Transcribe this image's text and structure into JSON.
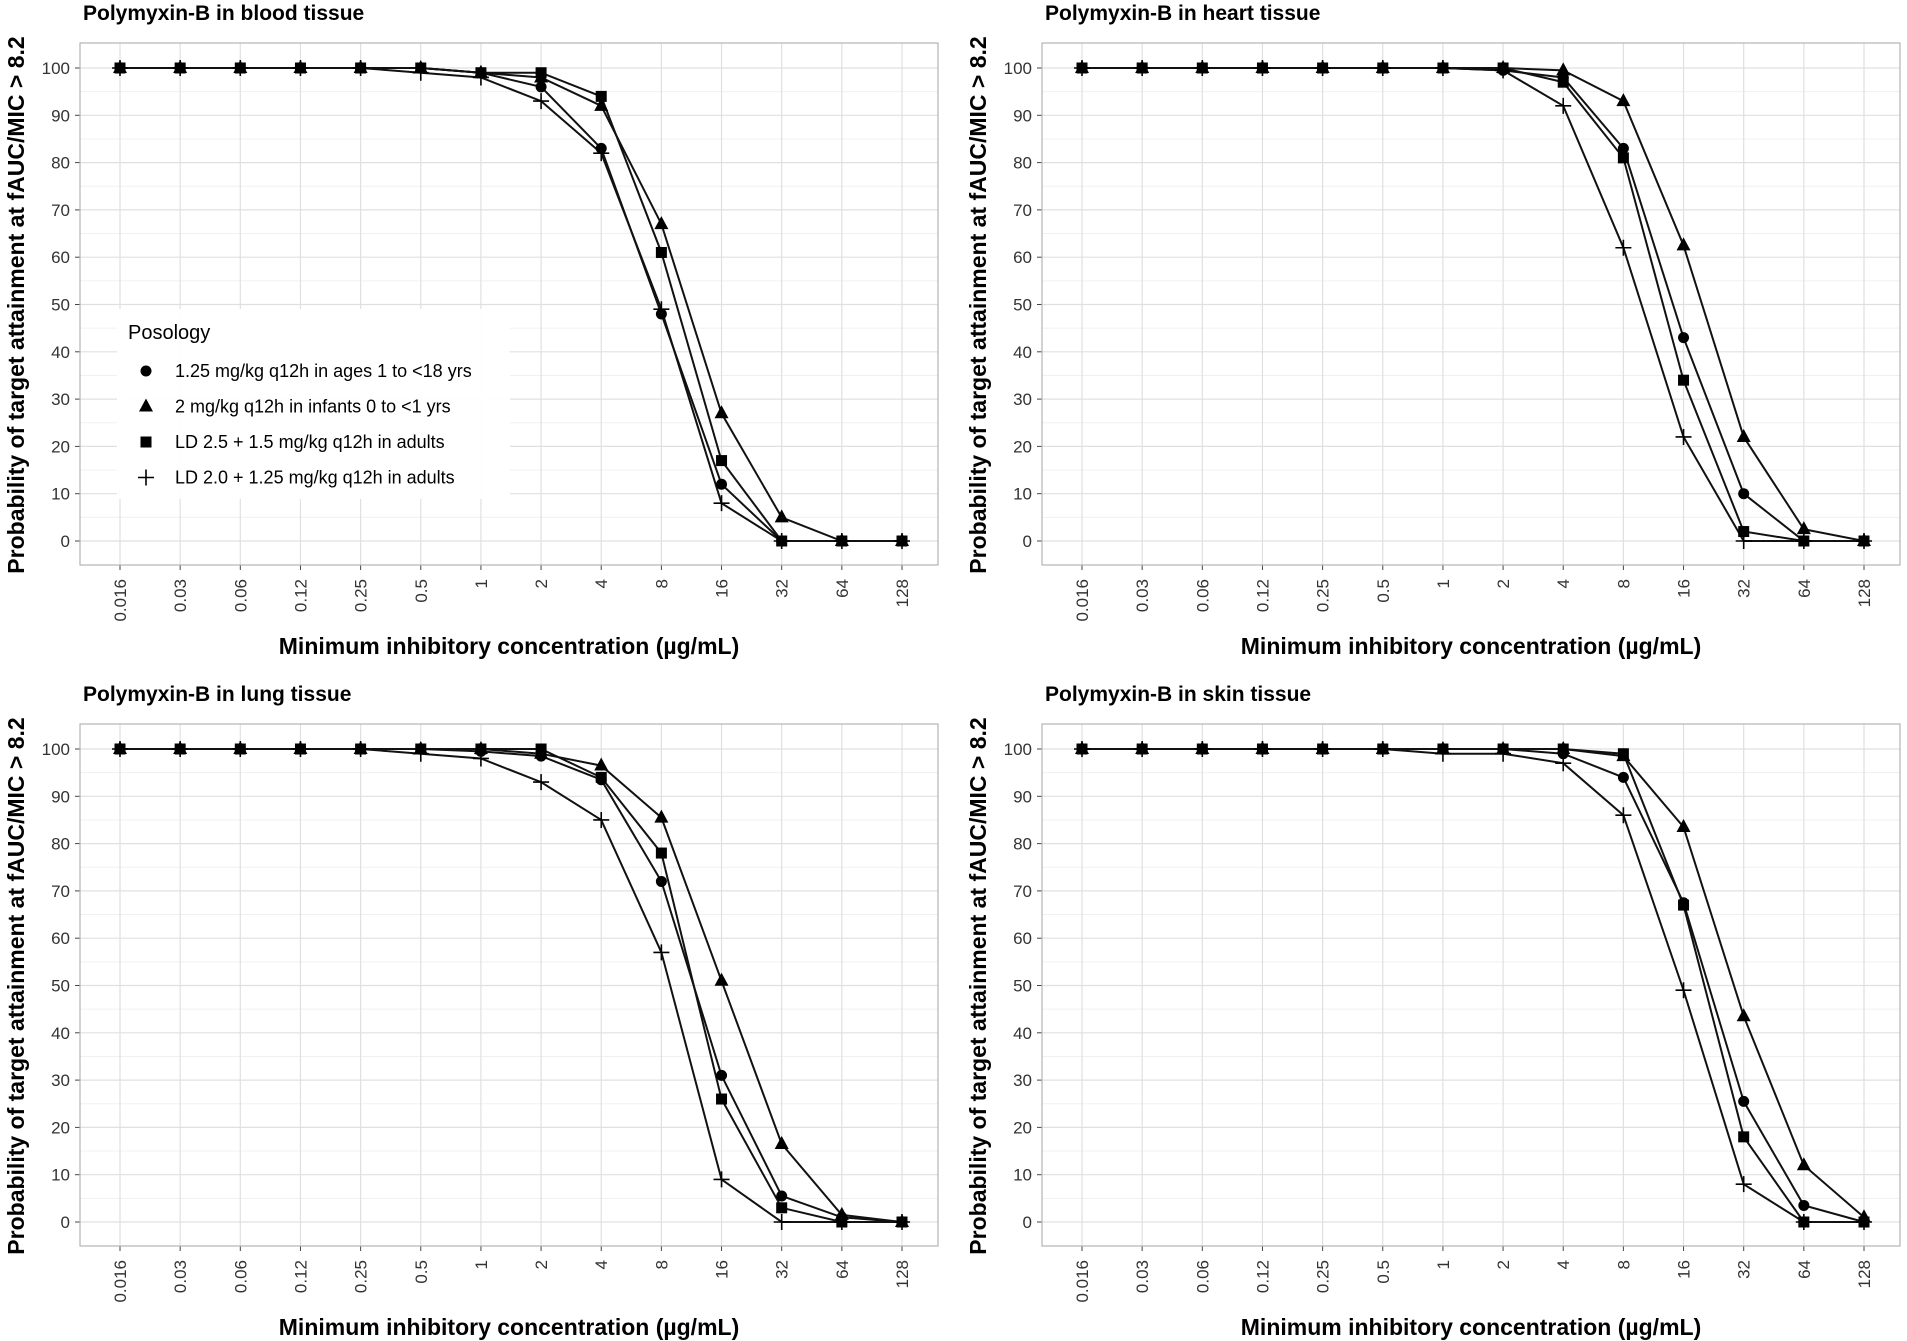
{
  "chart_data": [
    {
      "type": "line",
      "title": "Polymyxin-B in blood tissue",
      "xlabel": "Minimum inhibitory concentration (µg/mL)",
      "ylabel": "Probability of target attainment at fAUC/MIC > 8.2",
      "categories": [
        "0.016",
        "0.03",
        "0.06",
        "0.12",
        "0.25",
        "0.5",
        "1",
        "2",
        "4",
        "8",
        "16",
        "32",
        "64",
        "128"
      ],
      "ylim": [
        0,
        100
      ],
      "yticks": [
        0,
        10,
        20,
        30,
        40,
        50,
        60,
        70,
        80,
        90,
        100
      ],
      "grid": true,
      "series": [
        {
          "name": "1.25 mg/kg q12h in ages 1 to <18 yrs",
          "marker": "circle",
          "values": [
            100,
            100,
            100,
            100,
            100,
            100,
            99,
            96,
            83,
            48,
            12,
            0,
            0,
            0
          ]
        },
        {
          "name": "2 mg/kg q12h in infants 0 to <1 yrs",
          "marker": "triangle",
          "values": [
            100,
            100,
            100,
            100,
            100,
            100,
            99,
            98,
            92,
            67,
            27,
            5,
            0,
            0
          ]
        },
        {
          "name": "LD 2.5 + 1.5 mg/kg q12h in adults",
          "marker": "square",
          "values": [
            100,
            100,
            100,
            100,
            100,
            100,
            99,
            99,
            94,
            61,
            17,
            0,
            0,
            0
          ]
        },
        {
          "name": "LD 2.0 + 1.25 mg/kg q12h in adults",
          "marker": "plus",
          "values": [
            100,
            100,
            100,
            100,
            100,
            99,
            98,
            93,
            82,
            49,
            8,
            0,
            0,
            0
          ]
        }
      ]
    },
    {
      "type": "line",
      "title": "Polymyxin-B in heart tissue",
      "xlabel": "Minimum inhibitory concentration (µg/mL)",
      "ylabel": "Probability of target attainment at fAUC/MIC > 8.2",
      "categories": [
        "0.016",
        "0.03",
        "0.06",
        "0.12",
        "0.25",
        "0.5",
        "1",
        "2",
        "4",
        "8",
        "16",
        "32",
        "64",
        "128"
      ],
      "ylim": [
        0,
        100
      ],
      "yticks": [
        0,
        10,
        20,
        30,
        40,
        50,
        60,
        70,
        80,
        90,
        100
      ],
      "grid": true,
      "series": [
        {
          "name": "1.25 mg/kg q12h in ages 1 to <18 yrs",
          "marker": "circle",
          "values": [
            100,
            100,
            100,
            100,
            100,
            100,
            100,
            99.5,
            98,
            83,
            43,
            10,
            0,
            0
          ]
        },
        {
          "name": "2 mg/kg q12h in infants 0 to <1 yrs",
          "marker": "triangle",
          "values": [
            100,
            100,
            100,
            100,
            100,
            100,
            100,
            100,
            99.5,
            93,
            62.5,
            22,
            2.5,
            0
          ]
        },
        {
          "name": "LD 2.5 + 1.5 mg/kg q12h in adults",
          "marker": "square",
          "values": [
            100,
            100,
            100,
            100,
            100,
            100,
            100,
            100,
            97,
            81,
            34,
            2,
            0,
            0
          ]
        },
        {
          "name": "LD 2.0 + 1.25 mg/kg q12h in adults",
          "marker": "plus",
          "values": [
            100,
            100,
            100,
            100,
            100,
            100,
            100,
            99.5,
            92,
            62,
            22,
            0,
            0,
            0
          ]
        }
      ]
    },
    {
      "type": "line",
      "title": "Polymyxin-B in lung tissue",
      "xlabel": "Minimum inhibitory concentration (µg/mL)",
      "ylabel": "Probability of target attainment at fAUC/MIC > 8.2",
      "categories": [
        "0.016",
        "0.03",
        "0.06",
        "0.12",
        "0.25",
        "0.5",
        "1",
        "2",
        "4",
        "8",
        "16",
        "32",
        "64",
        "128"
      ],
      "ylim": [
        0,
        100
      ],
      "yticks": [
        0,
        10,
        20,
        30,
        40,
        50,
        60,
        70,
        80,
        90,
        100
      ],
      "grid": true,
      "series": [
        {
          "name": "1.25 mg/kg q12h in ages 1 to <18 yrs",
          "marker": "circle",
          "values": [
            100,
            100,
            100,
            100,
            100,
            100,
            99.5,
            98.5,
            93.5,
            72,
            31,
            5.5,
            1,
            0
          ]
        },
        {
          "name": "2 mg/kg q12h in infants 0 to <1 yrs",
          "marker": "triangle",
          "values": [
            100,
            100,
            100,
            100,
            100,
            100,
            100,
            99,
            96.5,
            85.5,
            51,
            16.5,
            1.5,
            0
          ]
        },
        {
          "name": "LD 2.5 + 1.5 mg/kg q12h in adults",
          "marker": "square",
          "values": [
            100,
            100,
            100,
            100,
            100,
            100,
            100,
            100,
            94,
            78,
            26,
            3,
            0,
            0
          ]
        },
        {
          "name": "LD 2.0 + 1.25 mg/kg q12h in adults",
          "marker": "plus",
          "values": [
            100,
            100,
            100,
            100,
            100,
            99,
            98,
            93,
            85,
            57,
            9,
            0,
            0,
            0
          ]
        }
      ]
    },
    {
      "type": "line",
      "title": "Polymyxin-B in skin tissue",
      "xlabel": "Minimum inhibitory concentration (µg/mL)",
      "ylabel": "Probability of target attainment at fAUC/MIC > 8.2",
      "categories": [
        "0.016",
        "0.03",
        "0.06",
        "0.12",
        "0.25",
        "0.5",
        "1",
        "2",
        "4",
        "8",
        "16",
        "32",
        "64",
        "128"
      ],
      "ylim": [
        0,
        100
      ],
      "yticks": [
        0,
        10,
        20,
        30,
        40,
        50,
        60,
        70,
        80,
        90,
        100
      ],
      "grid": true,
      "series": [
        {
          "name": "1.25 mg/kg q12h in ages 1 to <18 yrs",
          "marker": "circle",
          "values": [
            100,
            100,
            100,
            100,
            100,
            100,
            100,
            100,
            99,
            94,
            67.5,
            25.5,
            3.5,
            0
          ]
        },
        {
          "name": "2 mg/kg q12h in infants 0 to <1 yrs",
          "marker": "triangle",
          "values": [
            100,
            100,
            100,
            100,
            100,
            100,
            100,
            100,
            100,
            98.5,
            83.5,
            43.5,
            12,
            1
          ]
        },
        {
          "name": "LD 2.5 + 1.5 mg/kg q12h in adults",
          "marker": "square",
          "values": [
            100,
            100,
            100,
            100,
            100,
            100,
            100,
            100,
            100,
            99,
            67,
            18,
            0,
            0
          ]
        },
        {
          "name": "LD 2.0 + 1.25 mg/kg q12h in adults",
          "marker": "plus",
          "values": [
            100,
            100,
            100,
            100,
            100,
            100,
            99,
            99,
            97,
            86,
            49,
            8,
            0,
            0
          ]
        }
      ]
    }
  ],
  "legend": {
    "title": "Posology",
    "placement": "inside first panel, center-left",
    "entries": [
      "1.25 mg/kg q12h in ages 1 to <18 yrs",
      "2 mg/kg q12h in infants 0 to <1 yrs",
      "LD 2.5 + 1.5 mg/kg q12h in adults",
      "LD 2.0 + 1.25 mg/kg q12h in adults"
    ]
  }
}
